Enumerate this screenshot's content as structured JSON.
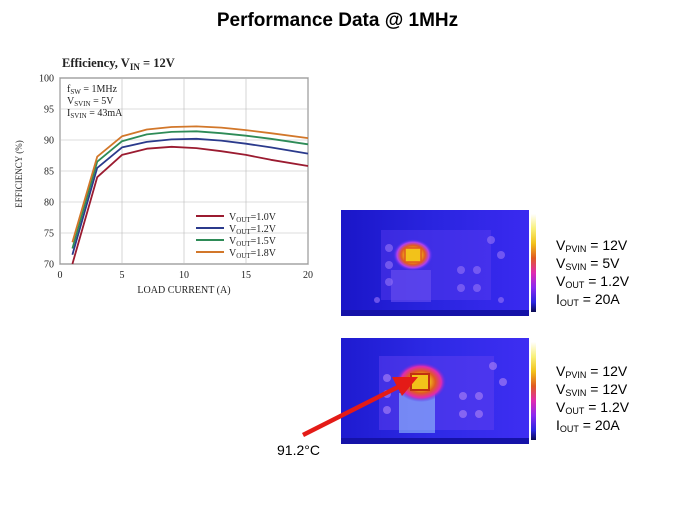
{
  "slide": {
    "title": "Performance Data @ 1MHz"
  },
  "chart_data": {
    "type": "line",
    "title": "Efficiency, V",
    "title_sub": "IN",
    "title_rest": " = 12V",
    "xlabel": "LOAD CURRENT (A)",
    "ylabel": "EFFICIENCY (%)",
    "xlim": [
      0,
      20
    ],
    "ylim": [
      70,
      100
    ],
    "x_ticks": [
      0,
      5,
      10,
      15,
      20
    ],
    "y_ticks": [
      70,
      75,
      80,
      85,
      90,
      95,
      100
    ],
    "annotations": [
      {
        "main": "f",
        "sub": "SW",
        "rest": " = 1MHz"
      },
      {
        "main": "V",
        "sub": "SVIN",
        "rest": " = 5V"
      },
      {
        "main": "I",
        "sub": "SVIN",
        "rest": " = 43mA"
      }
    ],
    "legend_position": "bottom-right",
    "series": [
      {
        "name": "V",
        "sub": "OUT",
        "rest": "=1.0V",
        "color": "#9b1b30",
        "x": [
          1,
          3,
          5,
          7,
          9,
          11,
          13,
          15,
          17,
          20
        ],
        "y": [
          70,
          84,
          87.6,
          88.6,
          88.9,
          88.7,
          88.2,
          87.6,
          86.8,
          85.8
        ]
      },
      {
        "name": "V",
        "sub": "OUT",
        "rest": "=1.2V",
        "color": "#2b3a8c",
        "x": [
          1,
          3,
          5,
          7,
          9,
          11,
          13,
          15,
          17,
          20
        ],
        "y": [
          71.5,
          85.5,
          88.8,
          89.7,
          90.1,
          90.2,
          89.9,
          89.4,
          88.8,
          87.8
        ]
      },
      {
        "name": "V",
        "sub": "OUT",
        "rest": "=1.5V",
        "color": "#2e8b57",
        "x": [
          1,
          3,
          5,
          7,
          9,
          11,
          13,
          15,
          17,
          20
        ],
        "y": [
          72.5,
          86.5,
          89.8,
          90.9,
          91.3,
          91.4,
          91.1,
          90.7,
          90.2,
          89.3
        ]
      },
      {
        "name": "V",
        "sub": "OUT",
        "rest": "=1.8V",
        "color": "#d2772a",
        "x": [
          1,
          3,
          5,
          7,
          9,
          11,
          13,
          15,
          17,
          20
        ],
        "y": [
          73.5,
          87.3,
          90.6,
          91.7,
          92.1,
          92.2,
          92.0,
          91.6,
          91.1,
          90.3
        ]
      }
    ]
  },
  "thermal_images": [
    {
      "hotspot_label": "91.2°C",
      "colors": [
        "#1e1bd8",
        "#3b2bf0",
        "#7a3bf5",
        "#b040f0",
        "#e05a20",
        "#f2c21a",
        "#f8f07a"
      ]
    }
  ],
  "conditions": [
    {
      "pvin": {
        "main": "V",
        "sub": "PVIN",
        "rest": " = 12V"
      },
      "svin": {
        "main": "V",
        "sub": "SVIN",
        "rest": " = 5V"
      },
      "vout": {
        "main": "V",
        "sub": "OUT",
        "rest": " = 1.2V"
      },
      "iout": {
        "main": "I",
        "sub": "OUT",
        "rest": " = 20A"
      }
    },
    {
      "pvin": {
        "main": "V",
        "sub": "PVIN",
        "rest": " = 12V"
      },
      "svin": {
        "main": "V",
        "sub": "SVIN",
        "rest": " = 12V"
      },
      "vout": {
        "main": "V",
        "sub": "OUT",
        "rest": " = 1.2V"
      },
      "iout": {
        "main": "I",
        "sub": "OUT",
        "rest": " = 20A"
      }
    }
  ],
  "callout": {
    "temperature": "91.2°C",
    "arrow_color": "#e41b17"
  }
}
